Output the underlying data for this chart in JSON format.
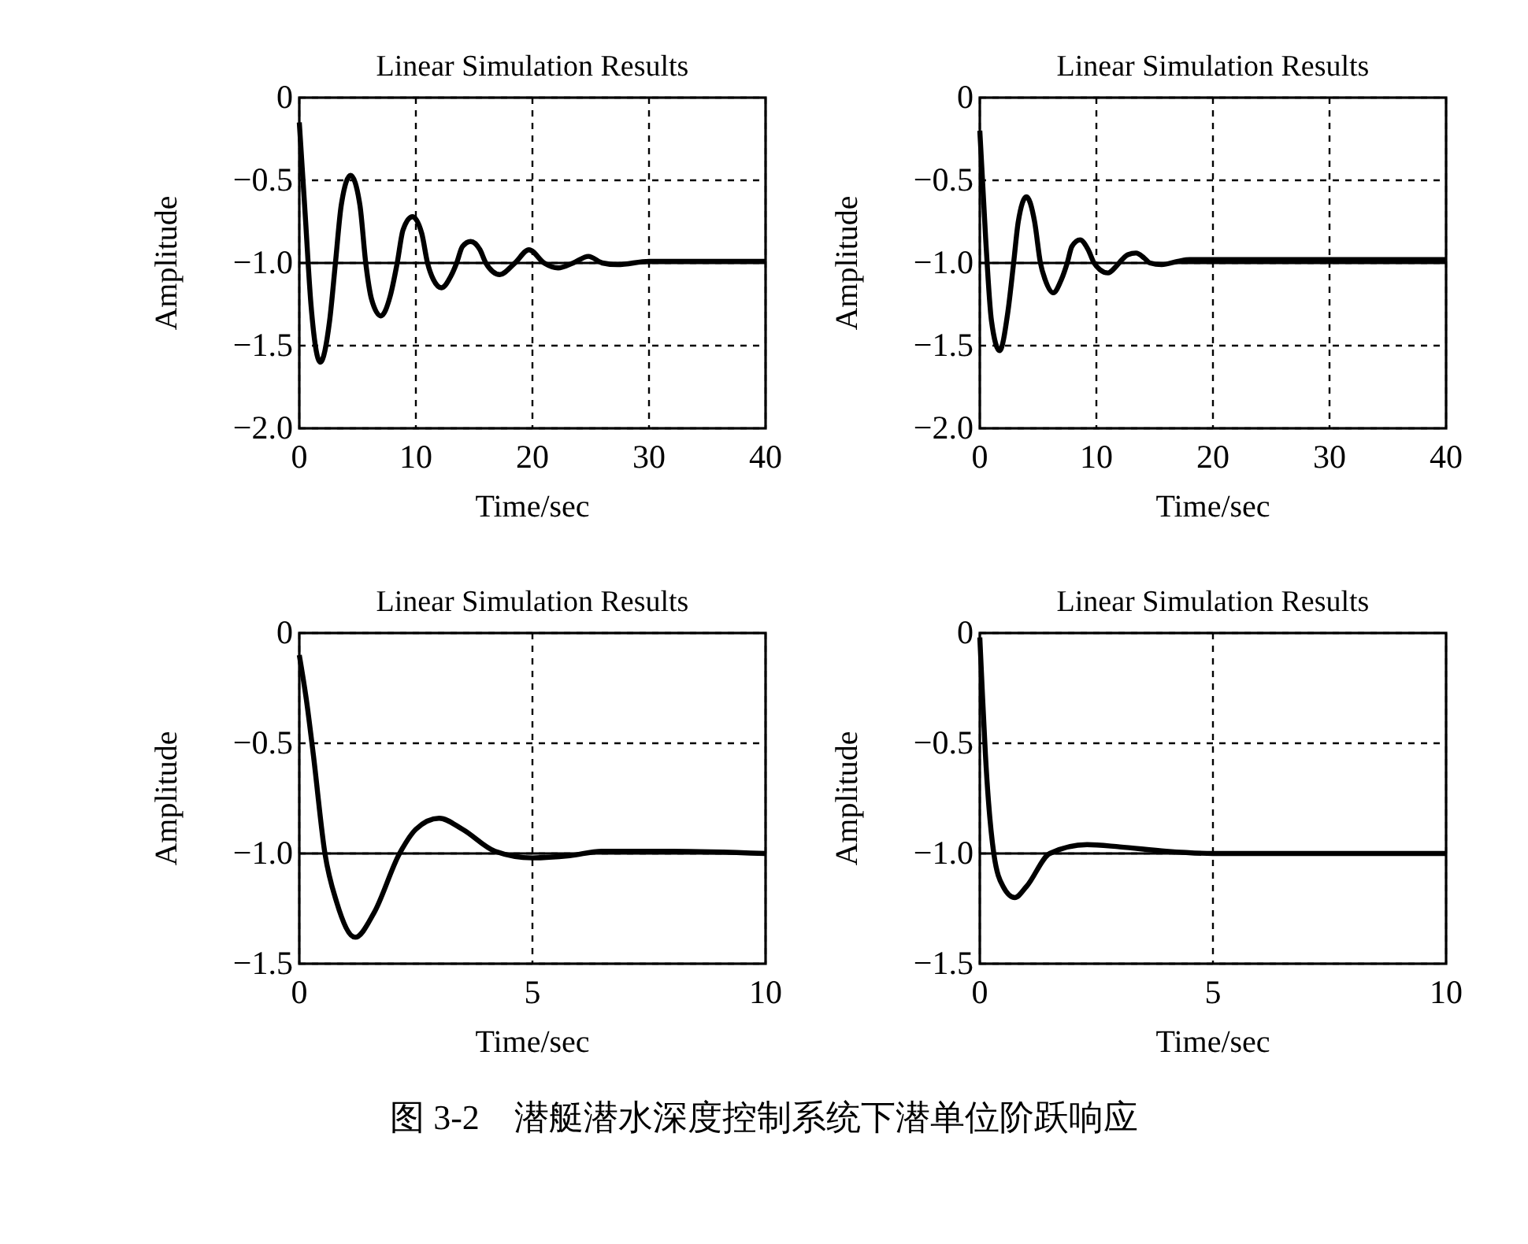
{
  "chart_data": [
    {
      "type": "line",
      "title": "Linear Simulation Results",
      "xlabel": "Time/sec",
      "ylabel": "Amplitude",
      "xlim": [
        0,
        40
      ],
      "xticks": [
        0,
        10,
        20,
        30,
        40
      ],
      "ylim": [
        -2,
        0
      ],
      "yticks": [
        {
          "value": -2,
          "label": "−2.0"
        },
        {
          "value": -1.5,
          "label": "−1.5"
        },
        {
          "value": -1,
          "label": "−1.0"
        },
        {
          "value": -0.5,
          "label": "−0.5"
        },
        {
          "value": 0,
          "label": "0"
        }
      ],
      "grid": true,
      "line_style": "solid",
      "ref_lines": [
        {
          "axis": "y",
          "value": -1,
          "color": "#000000"
        }
      ],
      "x": [
        0,
        0.5,
        1,
        1.8,
        2.6,
        3.1,
        3.6,
        4.4,
        5.2,
        5.7,
        6.2,
        7,
        7.8,
        8.4,
        8.9,
        9.7,
        10.5,
        11,
        11.5,
        12.2,
        13,
        13.5,
        14,
        14.7,
        15.5,
        16,
        17.2,
        18.5,
        19.7,
        21,
        22.2,
        23.5,
        24.8,
        26,
        27.3,
        30,
        35,
        40
      ],
      "series": [
        {
          "color": "#000000",
          "values": [
            -0.15,
            -0.7,
            -1.25,
            -1.6,
            -1.35,
            -1.0,
            -0.65,
            -0.47,
            -0.65,
            -1.0,
            -1.22,
            -1.32,
            -1.2,
            -1.0,
            -0.8,
            -0.72,
            -0.82,
            -1.0,
            -1.1,
            -1.15,
            -1.08,
            -1.0,
            -0.9,
            -0.87,
            -0.92,
            -1.0,
            -1.07,
            -1.0,
            -0.92,
            -1.0,
            -1.03,
            -1.0,
            -0.96,
            -1.0,
            -1.01,
            -0.99,
            -0.99,
            -0.99
          ]
        }
      ]
    },
    {
      "type": "line",
      "title": "Linear Simulation Results",
      "xlabel": "Time/sec",
      "ylabel": "Amplitude",
      "xlim": [
        0,
        40
      ],
      "xticks": [
        0,
        10,
        20,
        30,
        40
      ],
      "ylim": [
        -2,
        0
      ],
      "yticks": [
        {
          "value": -2,
          "label": "−2.0"
        },
        {
          "value": -1.5,
          "label": "−1.5"
        },
        {
          "value": -1,
          "label": "−1.0"
        },
        {
          "value": -0.5,
          "label": "−0.5"
        },
        {
          "value": 0,
          "label": "0"
        }
      ],
      "grid": true,
      "line_style": "solid",
      "ref_lines": [
        {
          "axis": "y",
          "value": -1,
          "color": "#000000"
        }
      ],
      "x": [
        0,
        0.5,
        1,
        1.7,
        2.4,
        2.9,
        3.3,
        4.0,
        4.7,
        5.2,
        5.6,
        6.3,
        7.0,
        7.5,
        7.9,
        8.6,
        9.3,
        9.8,
        10.3,
        11,
        11.7,
        12.2,
        12.7,
        13.4,
        14.1,
        14.6,
        15.6,
        17,
        18,
        25,
        30,
        40
      ],
      "series": [
        {
          "color": "#000000",
          "values": [
            -0.2,
            -0.85,
            -1.35,
            -1.53,
            -1.3,
            -1.0,
            -0.75,
            -0.6,
            -0.75,
            -1.0,
            -1.1,
            -1.18,
            -1.1,
            -1.0,
            -0.9,
            -0.86,
            -0.92,
            -1.0,
            -1.04,
            -1.06,
            -1.02,
            -0.98,
            -0.95,
            -0.94,
            -0.97,
            -1.0,
            -1.01,
            -0.99,
            -0.98,
            -0.98,
            -0.98,
            -0.98
          ]
        }
      ]
    },
    {
      "type": "line",
      "title": "Linear Simulation Results",
      "xlabel": "Time/sec",
      "ylabel": "Amplitude",
      "xlim": [
        0,
        10
      ],
      "xticks": [
        0,
        5,
        10
      ],
      "ylim": [
        -1.5,
        0
      ],
      "yticks": [
        {
          "value": -1.5,
          "label": "−1.5"
        },
        {
          "value": -1,
          "label": "−1.0"
        },
        {
          "value": -0.5,
          "label": "−0.5"
        },
        {
          "value": 0,
          "label": "0"
        }
      ],
      "grid": true,
      "line_style": "solid",
      "ref_lines": [
        {
          "axis": "y",
          "value": -1,
          "color": "#000000"
        }
      ],
      "x": [
        0,
        0.15,
        0.3,
        0.55,
        0.8,
        1.2,
        1.6,
        2.15,
        2.5,
        3.0,
        3.5,
        4.2,
        5,
        5.8,
        6.5,
        8,
        10
      ],
      "series": [
        {
          "color": "#000000",
          "values": [
            -0.1,
            -0.3,
            -0.55,
            -1.0,
            -1.22,
            -1.38,
            -1.27,
            -1.0,
            -0.89,
            -0.84,
            -0.89,
            -0.99,
            -1.02,
            -1.01,
            -0.99,
            -0.99,
            -1.0
          ]
        }
      ]
    },
    {
      "type": "line",
      "title": "Linear Simulation Results",
      "xlabel": "Time/sec",
      "ylabel": "Amplitude",
      "xlim": [
        0,
        10
      ],
      "xticks": [
        0,
        5,
        10
      ],
      "ylim": [
        -1.5,
        0
      ],
      "yticks": [
        {
          "value": -1.5,
          "label": "−1.5"
        },
        {
          "value": -1,
          "label": "−1.0"
        },
        {
          "value": -0.5,
          "label": "−0.5"
        },
        {
          "value": 0,
          "label": "0"
        }
      ],
      "grid": true,
      "line_style": "solid",
      "ref_lines": [
        {
          "axis": "y",
          "value": -1,
          "color": "#000000"
        }
      ],
      "x": [
        0,
        0.05,
        0.12,
        0.3,
        0.5,
        0.75,
        1.0,
        1.5,
        2.3,
        3,
        4,
        5,
        7,
        10
      ],
      "series": [
        {
          "color": "#000000",
          "values": [
            -0.02,
            -0.25,
            -0.55,
            -1.0,
            -1.15,
            -1.2,
            -1.15,
            -1.0,
            -0.96,
            -0.97,
            -0.99,
            -1.0,
            -1.0,
            -1.0
          ]
        }
      ],
      "annotations": [
        "图 3-2　潜艇潜水深度控制系统下潜单位阶跃响应"
      ]
    }
  ]
}
